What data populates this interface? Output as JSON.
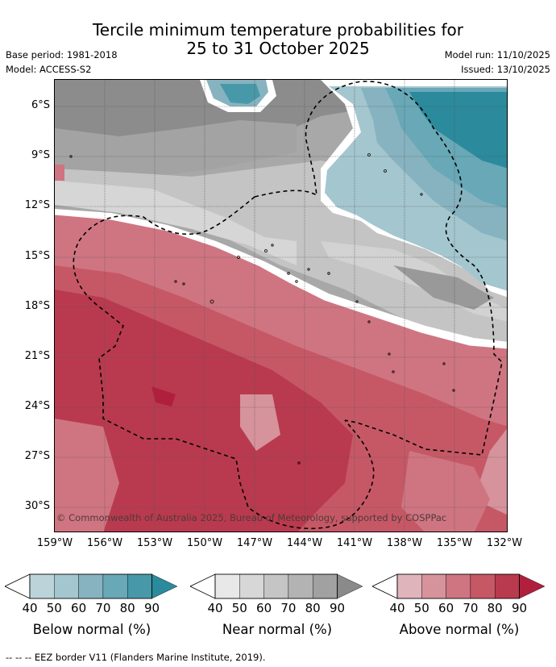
{
  "title": {
    "line1": "Tercile minimum temperature probabilities for",
    "line2": "25 to 31 October 2025"
  },
  "meta": {
    "base_period": "Base period: 1981-2018",
    "model": "Model: ACCESS-S2",
    "model_run": "Model run: 11/10/2025",
    "issued": "Issued: 13/10/2025"
  },
  "map": {
    "y_ticks": [
      "6°S",
      "9°S",
      "12°S",
      "15°S",
      "18°S",
      "21°S",
      "24°S",
      "27°S",
      "30°S"
    ],
    "x_ticks": [
      "159°W",
      "156°W",
      "153°W",
      "150°W",
      "147°W",
      "144°W",
      "141°W",
      "138°W",
      "135°W",
      "132°W"
    ],
    "credit": "© Commonwealth of Australia 2025, Bureau of Meteorology, supported by COSPPac"
  },
  "colorbars": [
    {
      "label": "Below normal (%)",
      "ticks": [
        "40",
        "50",
        "60",
        "70",
        "80",
        "90"
      ],
      "colors": [
        "#bdd3da",
        "#a4c6cf",
        "#86b3bf",
        "#68a8b7",
        "#4799a9",
        "#2b8a9c"
      ]
    },
    {
      "label": "Near normal (%)",
      "ticks": [
        "40",
        "50",
        "60",
        "70",
        "80",
        "90"
      ],
      "colors": [
        "#e8e8e8",
        "#d7d7d7",
        "#c5c5c5",
        "#b3b3b3",
        "#a1a1a1",
        "#8a8a8a"
      ]
    },
    {
      "label": "Above normal (%)",
      "ticks": [
        "40",
        "50",
        "60",
        "70",
        "80",
        "90"
      ],
      "colors": [
        "#e0b4bb",
        "#d6939c",
        "#cf7581",
        "#c65866",
        "#b93a4e",
        "#b01f3c"
      ]
    }
  ],
  "footer": "--  --  -- EEZ border V11 (Flanders Marine Institute, 2019)."
}
